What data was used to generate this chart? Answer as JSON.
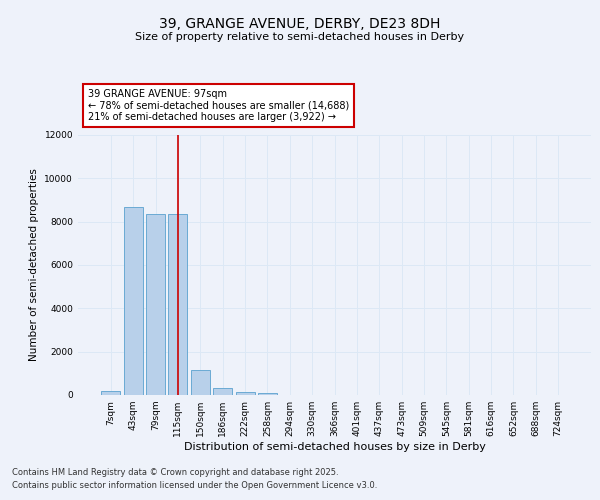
{
  "title_line1": "39, GRANGE AVENUE, DERBY, DE23 8DH",
  "title_line2": "Size of property relative to semi-detached houses in Derby",
  "xlabel": "Distribution of semi-detached houses by size in Derby",
  "ylabel": "Number of semi-detached properties",
  "categories": [
    "7sqm",
    "43sqm",
    "79sqm",
    "115sqm",
    "150sqm",
    "186sqm",
    "222sqm",
    "258sqm",
    "294sqm",
    "330sqm",
    "366sqm",
    "401sqm",
    "437sqm",
    "473sqm",
    "509sqm",
    "545sqm",
    "581sqm",
    "616sqm",
    "652sqm",
    "688sqm",
    "724sqm"
  ],
  "values": [
    200,
    8700,
    8350,
    8350,
    1150,
    320,
    130,
    80,
    0,
    0,
    0,
    0,
    0,
    0,
    0,
    0,
    0,
    0,
    0,
    0,
    0
  ],
  "bar_color": "#b8d0ea",
  "bar_edge_color": "#6aaad4",
  "grid_color": "#dce8f5",
  "background_color": "#eef2fa",
  "red_line_x": 3.0,
  "annotation_text": "39 GRANGE AVENUE: 97sqm\n← 78% of semi-detached houses are smaller (14,688)\n21% of semi-detached houses are larger (3,922) →",
  "annotation_box_color": "#ffffff",
  "annotation_box_edge": "#cc0000",
  "ylim": [
    0,
    12000
  ],
  "yticks": [
    0,
    2000,
    4000,
    6000,
    8000,
    10000,
    12000
  ],
  "footer_line1": "Contains HM Land Registry data © Crown copyright and database right 2025.",
  "footer_line2": "Contains public sector information licensed under the Open Government Licence v3.0.",
  "red_line_color": "#cc0000",
  "title_fontsize": 10,
  "subtitle_fontsize": 8,
  "footer_fontsize": 6,
  "ylabel_fontsize": 7.5,
  "xlabel_fontsize": 8,
  "tick_fontsize": 6.5,
  "annot_fontsize": 7
}
